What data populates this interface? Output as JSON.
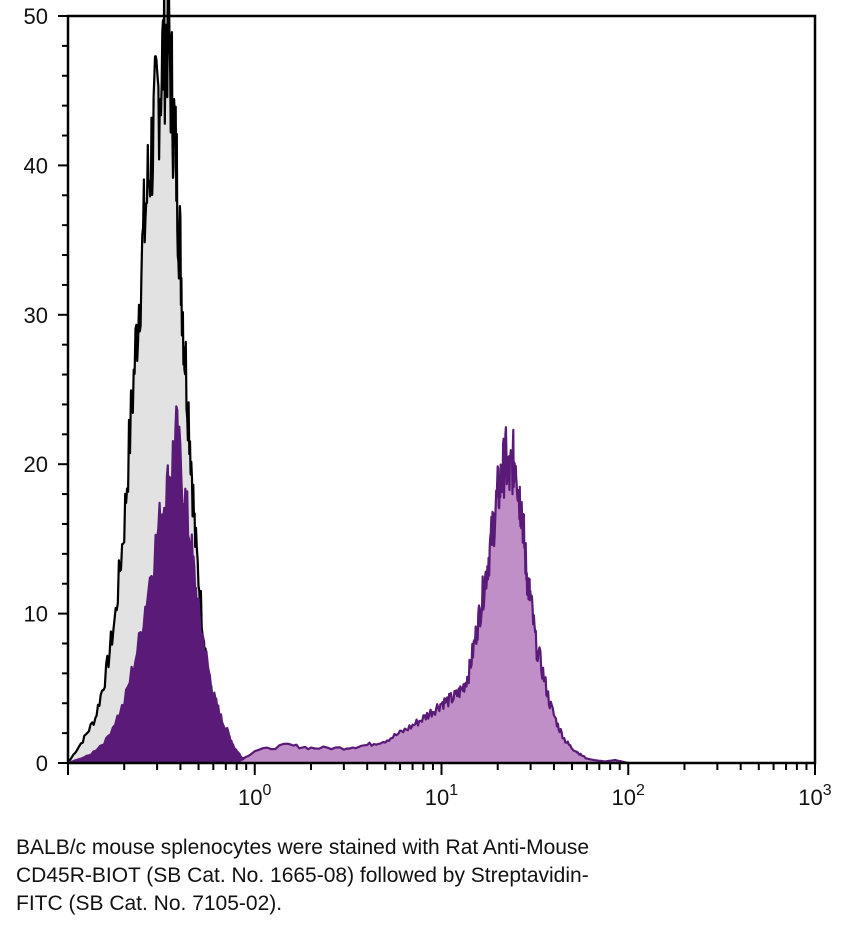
{
  "caption": [
    "BALB/c mouse splenocytes were stained with Rat Anti-Mouse",
    "CD45R-BIOT (SB Cat. No. 1665-08) followed by Streptavidin-",
    "FITC (SB Cat. No. 7105-02)."
  ],
  "chart_data": {
    "type": "area",
    "title": "",
    "xlabel": "",
    "ylabel": "",
    "x_scale": "log",
    "xlim": [
      0.1,
      1000
    ],
    "ylim": [
      0,
      50
    ],
    "grid": false,
    "x_ticks": [
      {
        "value": 1,
        "base": "10",
        "exp": "0"
      },
      {
        "value": 10,
        "base": "10",
        "exp": "1"
      },
      {
        "value": 100,
        "base": "10",
        "exp": "2"
      },
      {
        "value": 1000,
        "base": "10",
        "exp": "3"
      }
    ],
    "y_ticks": [
      0,
      10,
      20,
      30,
      40,
      50
    ],
    "series": [
      {
        "style": {
          "fill": "#e2e2e2",
          "stroke": "#000000"
        },
        "x": [
          0.1,
          0.12,
          0.14,
          0.16,
          0.18,
          0.2,
          0.22,
          0.24,
          0.26,
          0.28,
          0.3,
          0.32,
          0.34,
          0.36,
          0.38,
          0.4,
          0.42,
          0.45,
          0.48,
          0.52,
          0.56,
          0.6,
          0.65,
          0.7,
          0.75,
          0.8
        ],
        "values": [
          0,
          1.5,
          3,
          6,
          10,
          16,
          24,
          31,
          37,
          41,
          44,
          47,
          49,
          45,
          40,
          34,
          28,
          22,
          15,
          10,
          6,
          4,
          2.5,
          1.2,
          0.4,
          0
        ]
      },
      {
        "style": {
          "fill": "#5a1a78",
          "stroke": "#5a1a78"
        },
        "x": [
          0.1,
          0.13,
          0.16,
          0.2,
          0.24,
          0.28,
          0.32,
          0.35,
          0.38,
          0.42,
          0.46,
          0.5,
          0.55,
          0.6,
          0.66,
          0.72,
          0.78,
          0.85,
          0.95
        ],
        "values": [
          0,
          0.5,
          1.5,
          4,
          8,
          13,
          17,
          19,
          22,
          18,
          14,
          10,
          7,
          4.5,
          3,
          2,
          1,
          0.4,
          0
        ]
      },
      {
        "style": {
          "fill": "#c18fc8",
          "stroke": "#5a1a78"
        },
        "x": [
          0.8,
          1,
          1.5,
          2,
          3,
          4,
          5,
          6,
          7,
          8,
          9,
          10,
          11,
          12,
          13,
          14,
          15,
          16,
          17,
          18,
          19,
          20,
          21,
          22,
          23,
          24,
          25,
          26,
          27,
          28,
          29,
          30,
          32,
          35,
          38,
          42,
          46,
          50,
          55,
          60,
          65,
          75,
          85,
          100
        ],
        "values": [
          0,
          0.8,
          1.2,
          1,
          1,
          1.2,
          1.5,
          2,
          2.5,
          3,
          3.5,
          4,
          4.2,
          4.5,
          5,
          6,
          8,
          10,
          12,
          14,
          16,
          18,
          19,
          20.5,
          19,
          20,
          20.5,
          18,
          17,
          14,
          12,
          11,
          8,
          6,
          4,
          2.5,
          1.5,
          1,
          0.6,
          0.3,
          0.2,
          0.1,
          0.2,
          0
        ]
      }
    ]
  }
}
